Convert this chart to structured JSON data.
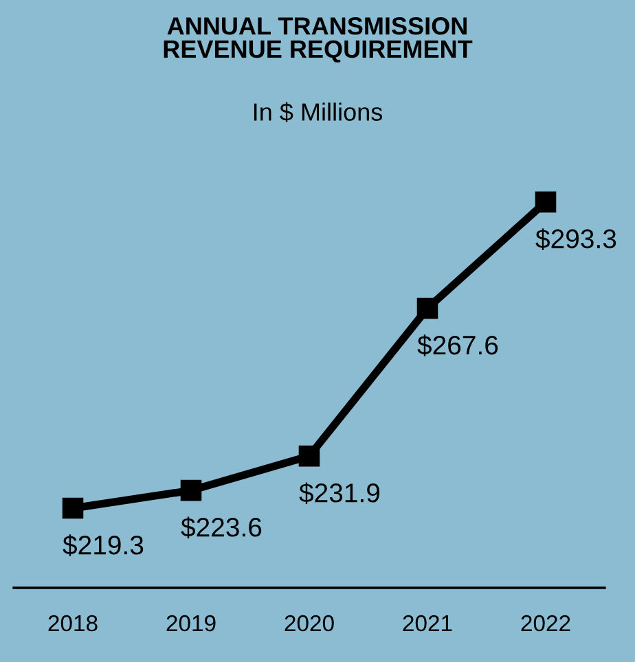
{
  "chart_data": {
    "type": "line",
    "title": "ANNUAL TRANSMISSION\nREVENUE REQUIREMENT",
    "subtitle": "In $ Millions",
    "categories": [
      "2018",
      "2019",
      "2020",
      "2021",
      "2022"
    ],
    "values": [
      219.3,
      223.6,
      231.9,
      267.6,
      293.3
    ],
    "value_labels": [
      "$219.3",
      "$223.6",
      "$231.9",
      "$267.6",
      "$293.3"
    ],
    "color": "#000000",
    "marker": "square",
    "line_style": "solid",
    "grid": false,
    "legend": false
  }
}
